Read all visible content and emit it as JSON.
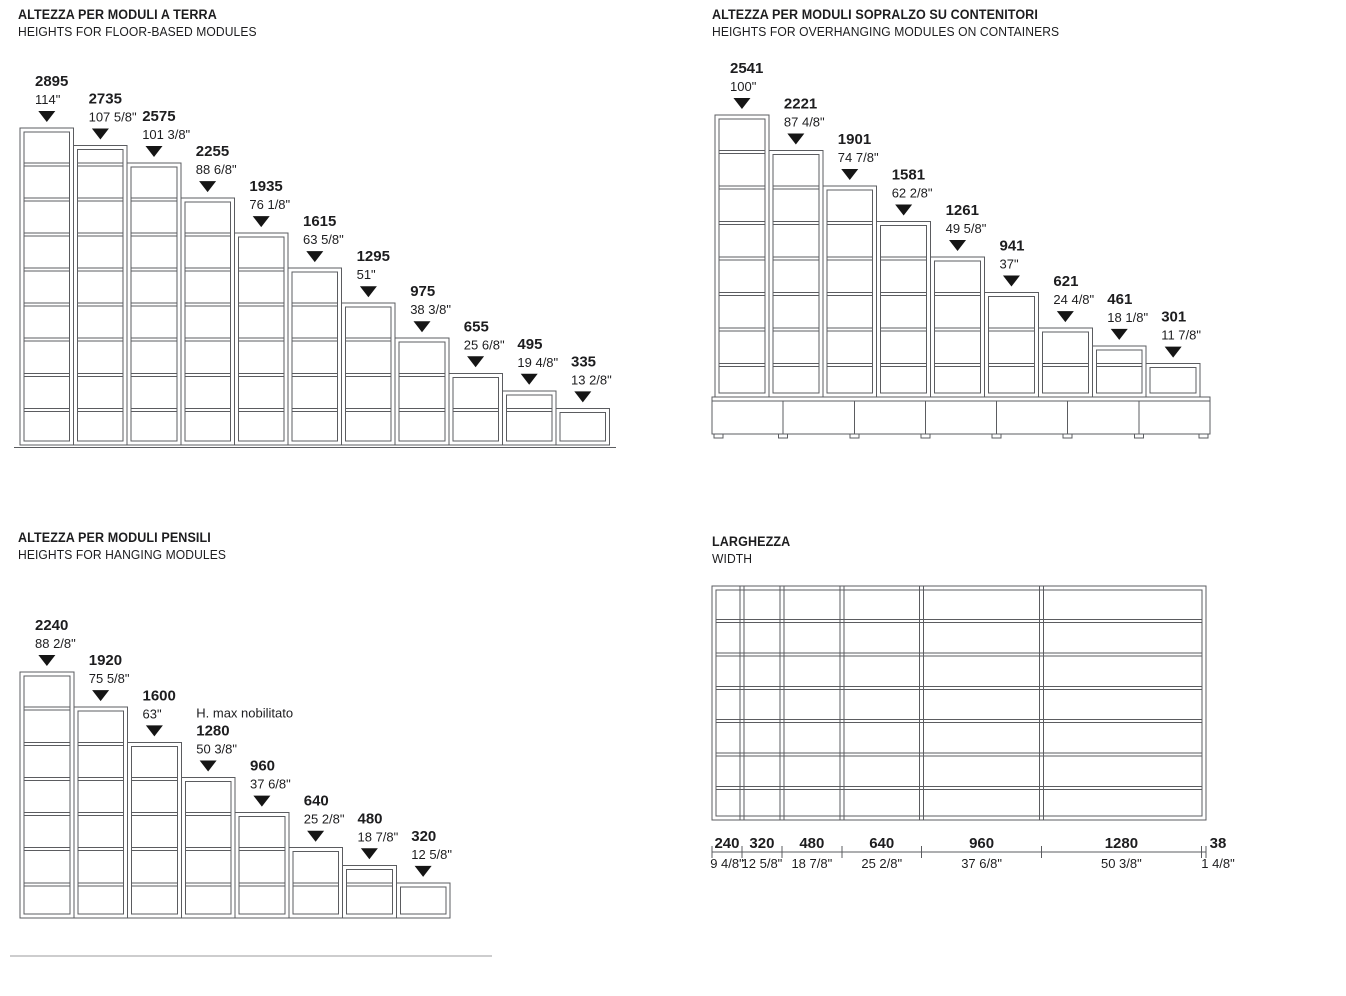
{
  "page": {
    "background": "#ffffff",
    "line_color": "#5b5c60",
    "text_color": "#1d1d1f",
    "arrow_color": "#151515",
    "arrow_icon": "triangle-down"
  },
  "panels": {
    "floor": {
      "title": "ALTEZZA PER MODULI A TERRA",
      "subtitle": "HEIGHTS FOR FLOOR-BASED MODULES",
      "modules": [
        {
          "mm": "2895",
          "inch": "114\""
        },
        {
          "mm": "2735",
          "inch": "107 5/8\""
        },
        {
          "mm": "2575",
          "inch": "101 3/8\""
        },
        {
          "mm": "2255",
          "inch": "88 6/8\""
        },
        {
          "mm": "1935",
          "inch": "76 1/8\""
        },
        {
          "mm": "1615",
          "inch": "63 5/8\""
        },
        {
          "mm": "1295",
          "inch": "51\""
        },
        {
          "mm": "975",
          "inch": "38 3/8\""
        },
        {
          "mm": "655",
          "inch": "25 6/8\""
        },
        {
          "mm": "495",
          "inch": "19 4/8\""
        },
        {
          "mm": "335",
          "inch": "13 2/8\""
        }
      ]
    },
    "overhang": {
      "title": "ALTEZZA PER MODULI SOPRALZO SU CONTENITORI",
      "subtitle": "HEIGHTS FOR OVERHANGING MODULES ON CONTAINERS",
      "modules": [
        {
          "mm": "2541",
          "inch": "100\""
        },
        {
          "mm": "2221",
          "inch": "87 4/8\""
        },
        {
          "mm": "1901",
          "inch": "74 7/8\""
        },
        {
          "mm": "1581",
          "inch": "62 2/8\""
        },
        {
          "mm": "1261",
          "inch": "49 5/8\""
        },
        {
          "mm": "941",
          "inch": "37\""
        },
        {
          "mm": "621",
          "inch": "24 4/8\""
        },
        {
          "mm": "461",
          "inch": "18 1/8\""
        },
        {
          "mm": "301",
          "inch": "11 7/8\""
        }
      ]
    },
    "hanging": {
      "title": "ALTEZZA PER MODULI PENSILI",
      "subtitle": "HEIGHTS FOR HANGING MODULES",
      "modules": [
        {
          "mm": "2240",
          "inch": "88 2/8\""
        },
        {
          "mm": "1920",
          "inch": "75 5/8\""
        },
        {
          "mm": "1600",
          "inch": "63\""
        },
        {
          "mm": "1280",
          "inch": "50 3/8\"",
          "note": "H. max nobilitato"
        },
        {
          "mm": "960",
          "inch": "37 6/8\""
        },
        {
          "mm": "640",
          "inch": "25 2/8\""
        },
        {
          "mm": "480",
          "inch": "18 7/8\""
        },
        {
          "mm": "320",
          "inch": "12 5/8\""
        }
      ]
    },
    "width": {
      "title": "LARGHEZZA",
      "subtitle": "WIDTH",
      "rows": 7,
      "segments": [
        {
          "mm": "240",
          "inch": "9 4/8\""
        },
        {
          "mm": "320",
          "inch": "12 5/8\""
        },
        {
          "mm": "480",
          "inch": "18 7/8\""
        },
        {
          "mm": "640",
          "inch": "25 2/8\""
        },
        {
          "mm": "960",
          "inch": "37 6/8\""
        },
        {
          "mm": "1280",
          "inch": "50 3/8\""
        },
        {
          "mm": "38",
          "inch": "1 4/8\""
        }
      ]
    }
  }
}
